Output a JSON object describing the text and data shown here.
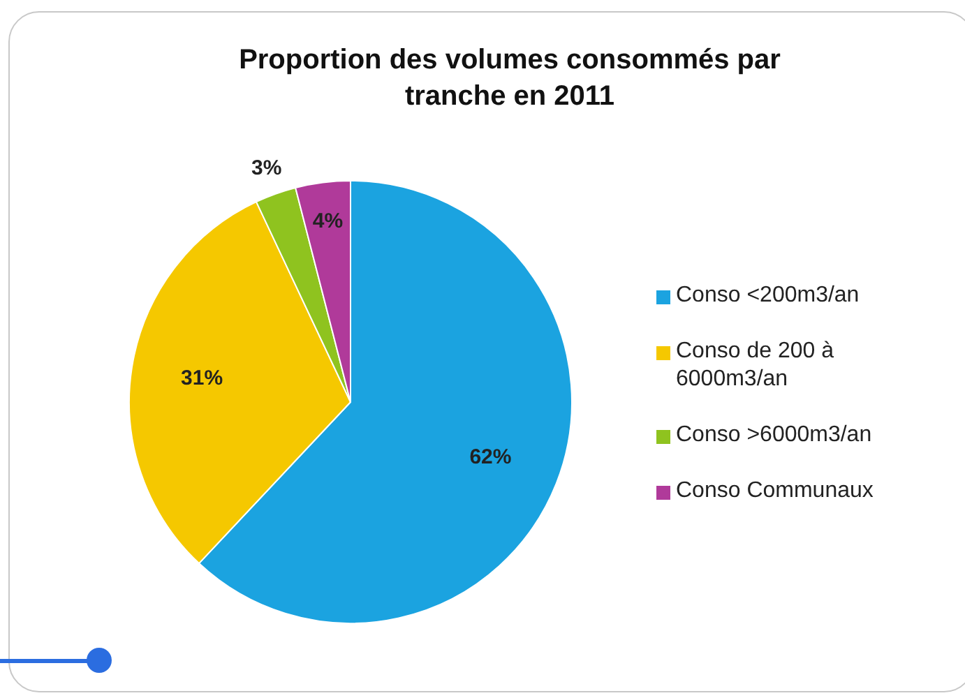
{
  "chart_data": {
    "type": "pie",
    "title": "Proportion des volumes consommés par tranche en 2011",
    "categories": [
      "Conso <200m3/an",
      "Conso de 200 à 6000m3/an",
      "Conso >6000m3/an",
      "Conso Communaux"
    ],
    "values": [
      62,
      31,
      3,
      4
    ],
    "colors": [
      "#1ba3e0",
      "#f5c800",
      "#8fc31f",
      "#b03a9a"
    ],
    "value_labels": [
      "62%",
      "31%",
      "3%",
      "4%"
    ],
    "legend": "right"
  }
}
